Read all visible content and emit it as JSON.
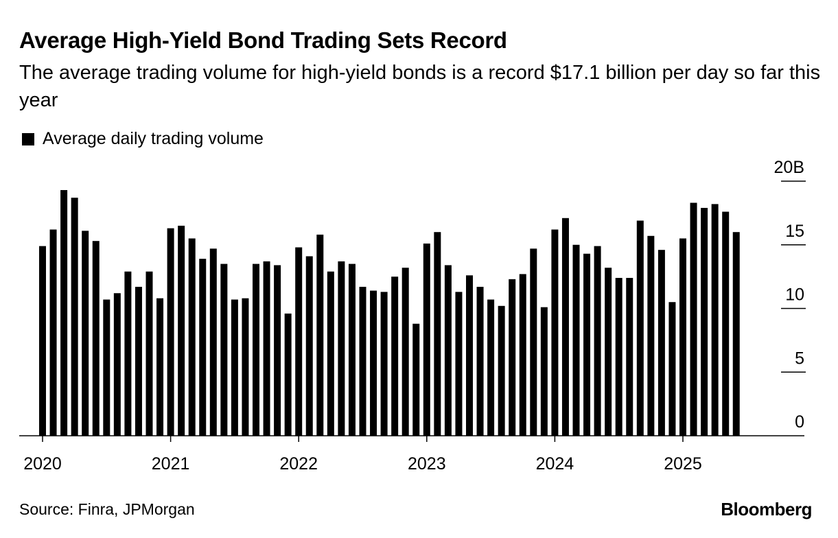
{
  "title": "Average High-Yield Bond Trading Sets Record",
  "subtitle": "The average trading volume for high-yield bonds is a record $17.1 billion per day so far this year",
  "legend_label": "Average daily trading volume",
  "source": "Source: Finra, JPMorgan",
  "brand": "Bloomberg",
  "colors": {
    "bar": "#000000",
    "axis": "#000000",
    "background": "#ffffff"
  },
  "chart_data": {
    "type": "bar",
    "title": "Average High-Yield Bond Trading Sets Record",
    "xlabel": "",
    "ylabel": "",
    "ylim": [
      0,
      20
    ],
    "yticks": [
      0,
      5,
      10,
      15,
      20
    ],
    "ytick_labels": [
      "0",
      "5",
      "10",
      "15",
      "20B"
    ],
    "xtick_labels": [
      "2020",
      "2021",
      "2022",
      "2023",
      "2024",
      "2025"
    ],
    "series": [
      {
        "name": "Average daily trading volume",
        "unit": "billion USD",
        "start": "2020-01",
        "frequency": "monthly",
        "values": [
          14.9,
          16.2,
          19.3,
          18.7,
          16.1,
          15.3,
          10.7,
          11.2,
          12.9,
          11.7,
          12.9,
          10.8,
          16.3,
          16.5,
          15.5,
          13.9,
          14.7,
          13.5,
          10.7,
          10.8,
          13.5,
          13.7,
          13.4,
          9.6,
          14.8,
          14.1,
          15.8,
          12.9,
          13.7,
          13.5,
          11.7,
          11.4,
          11.3,
          12.5,
          13.2,
          8.8,
          15.1,
          16.0,
          13.4,
          11.3,
          12.6,
          11.7,
          10.7,
          10.2,
          12.3,
          12.7,
          14.7,
          10.1,
          16.2,
          17.1,
          15.0,
          14.3,
          14.9,
          13.2,
          12.4,
          12.4,
          16.9,
          15.7,
          14.6,
          10.5,
          15.5,
          18.3,
          17.9,
          18.2,
          17.6,
          16.0
        ]
      }
    ]
  }
}
